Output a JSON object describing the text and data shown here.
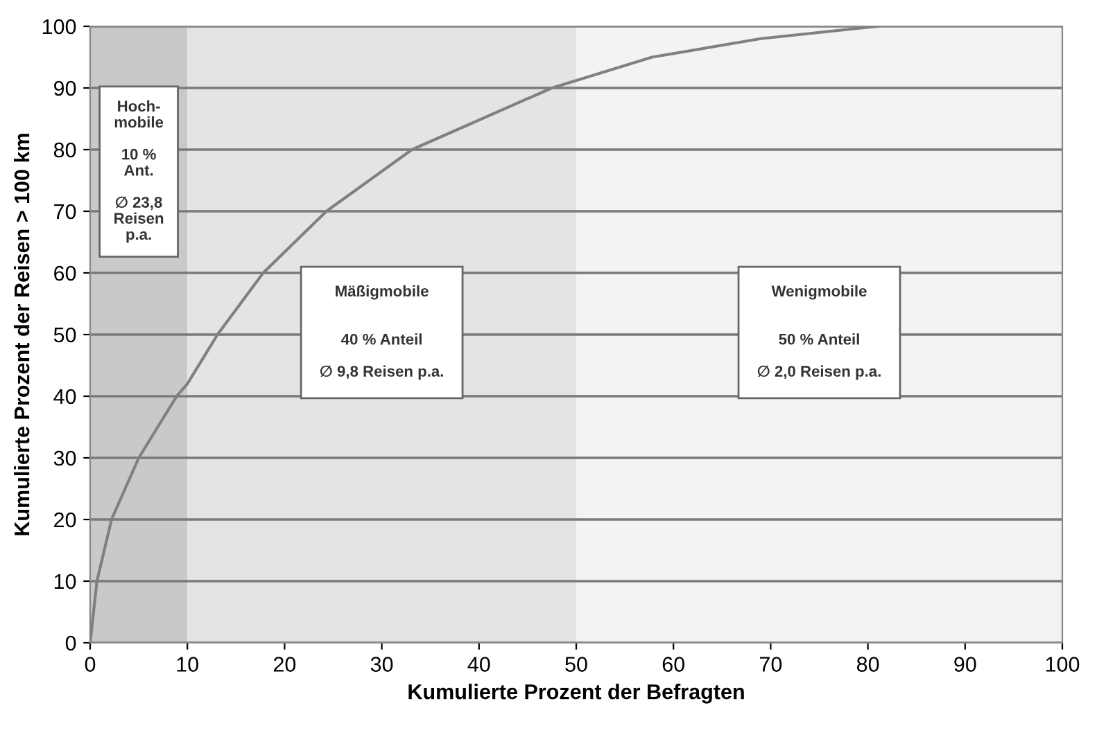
{
  "chart_data": {
    "type": "line",
    "xlabel": "Kumulierte Prozent der Befragten",
    "ylabel": "Kumulierte Prozent der Reisen > 100 km",
    "series": [
      {
        "color": "#808080",
        "x": [
          0,
          0.7,
          2.2,
          5.0,
          8.9,
          10,
          13.1,
          17.8,
          24.3,
          33.1,
          47.5,
          57.8,
          69,
          81
        ],
        "values": [
          0,
          10,
          20,
          30,
          40,
          42,
          50,
          60,
          70,
          80,
          90,
          95,
          98,
          100
        ]
      }
    ],
    "xlim": [
      0,
      100
    ],
    "ylim": [
      0,
      100
    ],
    "xticks": [
      0,
      10,
      20,
      30,
      40,
      50,
      60,
      70,
      80,
      90,
      100
    ],
    "yticks": [
      0,
      10,
      20,
      30,
      40,
      50,
      60,
      70,
      80,
      90,
      100
    ],
    "grid": "y",
    "marker": "none",
    "line_style": "solid",
    "bands": [
      {
        "axis": "x",
        "from": 0,
        "to": 10,
        "color": "#c9c9c9",
        "label": "Hoch-\nmobile\n\n10 %\nAnt.\n\n∅ 23,8\nReisen\np.a."
      },
      {
        "axis": "x",
        "from": 10,
        "to": 50,
        "color": "#e4e4e4",
        "label": "Mäßigmobile\n\n\n40 % Anteil\n\n∅ 9,8 Reisen p.a."
      },
      {
        "axis": "x",
        "from": 50,
        "to": 100,
        "color": "#f3f3f3",
        "label": "Wenigmobile\n\n\n50 % Anteil\n\n∅ 2,0 Reisen p.a."
      }
    ]
  }
}
